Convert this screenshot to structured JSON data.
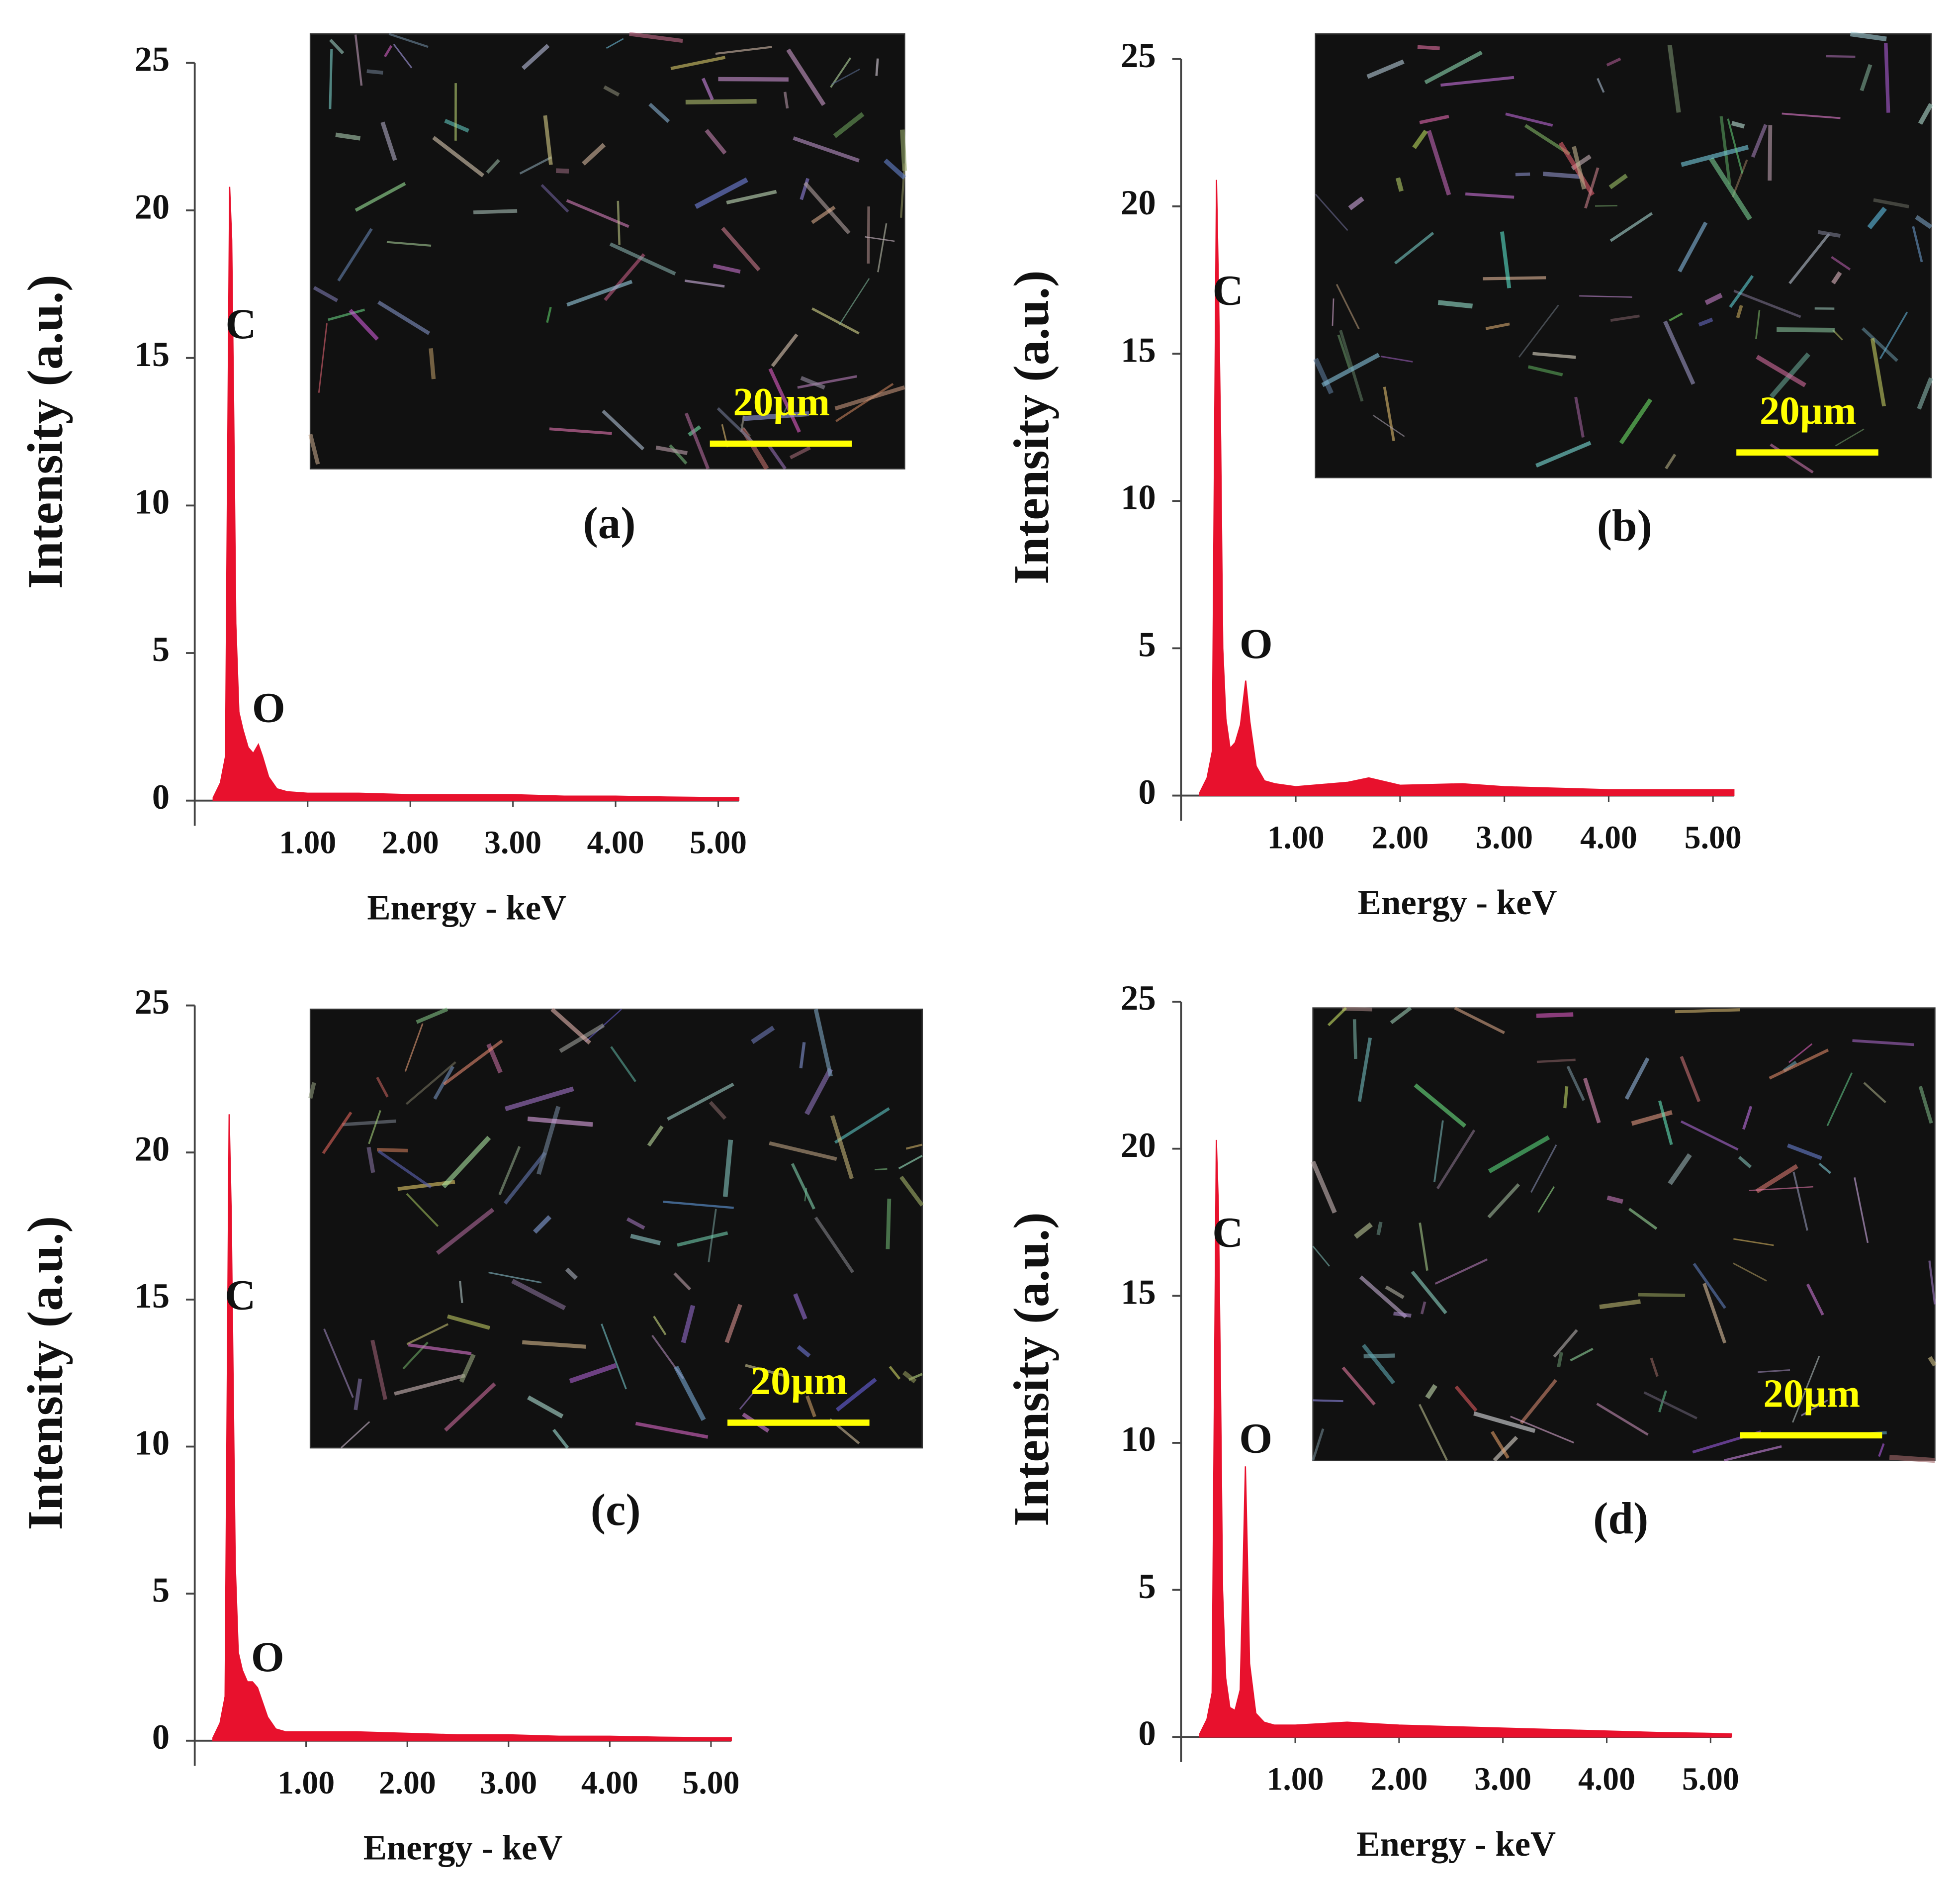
{
  "chart_data": [
    {
      "type": "area",
      "label": "(a)",
      "xlabel": "Energy - keV",
      "ylabel": "Intensity (a.u.)",
      "color": "#e8112d",
      "xlim": [
        -0.1,
        5.2
      ],
      "ylim": [
        0,
        25
      ],
      "xticks": [
        {
          "value": 1,
          "label": "1.00"
        },
        {
          "value": 2,
          "label": "2.00"
        },
        {
          "value": 3,
          "label": "3.00"
        },
        {
          "value": 4,
          "label": "4.00"
        },
        {
          "value": 5,
          "label": "5.00"
        }
      ],
      "yticks": [
        0,
        5,
        10,
        15,
        20,
        25
      ],
      "x": [
        0.08,
        0.15,
        0.2,
        0.24,
        0.26,
        0.28,
        0.3,
        0.33,
        0.37,
        0.42,
        0.47,
        0.52,
        0.56,
        0.62,
        0.7,
        0.8,
        1.0,
        1.5,
        2.0,
        2.5,
        3.0,
        3.5,
        4.0,
        4.5,
        5.0,
        5.2
      ],
      "values": [
        0.1,
        0.6,
        1.5,
        20.8,
        19,
        13,
        6,
        3,
        2.4,
        1.8,
        1.6,
        1.9,
        1.5,
        0.8,
        0.4,
        0.3,
        0.25,
        0.25,
        0.2,
        0.2,
        0.2,
        0.15,
        0.15,
        0.12,
        0.1,
        0.1
      ],
      "annotations": [
        {
          "text": "C",
          "x": 0.35,
          "y": 16
        },
        {
          "text": "O",
          "x": 0.62,
          "y": 3
        }
      ],
      "inset_scale": "20µm"
    },
    {
      "type": "area",
      "label": "(b)",
      "xlabel": "Energy - keV",
      "ylabel": "Intensity (a.u.)",
      "color": "#e8112d",
      "xlim": [
        -0.1,
        5.2
      ],
      "ylim": [
        0,
        25
      ],
      "xticks": [
        {
          "value": 1,
          "label": "1.00"
        },
        {
          "value": 2,
          "label": "2.00"
        },
        {
          "value": 3,
          "label": "3.00"
        },
        {
          "value": 4,
          "label": "4.00"
        },
        {
          "value": 5,
          "label": "5.00"
        }
      ],
      "yticks": [
        0,
        5,
        10,
        15,
        20,
        25
      ],
      "x": [
        0.08,
        0.15,
        0.2,
        0.24,
        0.26,
        0.28,
        0.3,
        0.33,
        0.37,
        0.42,
        0.47,
        0.52,
        0.56,
        0.62,
        0.7,
        0.8,
        1.0,
        1.5,
        1.7,
        2.0,
        2.6,
        3.0,
        3.5,
        4.0,
        4.5,
        5.0,
        5.2
      ],
      "values": [
        0.1,
        0.6,
        1.5,
        20.9,
        17,
        12,
        5,
        2.6,
        1.6,
        1.8,
        2.4,
        3.9,
        2.5,
        1.0,
        0.5,
        0.4,
        0.3,
        0.45,
        0.6,
        0.35,
        0.4,
        0.3,
        0.25,
        0.2,
        0.2,
        0.2,
        0.2
      ],
      "annotations": [
        {
          "text": "C",
          "x": 0.35,
          "y": 17
        },
        {
          "text": "O",
          "x": 0.62,
          "y": 5
        }
      ],
      "inset_scale": "20µm"
    },
    {
      "type": "area",
      "label": "(c)",
      "xlabel": "Energy - keV",
      "ylabel": "Intensity (a.u.)",
      "color": "#e8112d",
      "xlim": [
        -0.1,
        5.2
      ],
      "ylim": [
        0,
        25
      ],
      "xticks": [
        {
          "value": 1,
          "label": "1.00"
        },
        {
          "value": 2,
          "label": "2.00"
        },
        {
          "value": 3,
          "label": "3.00"
        },
        {
          "value": 4,
          "label": "4.00"
        },
        {
          "value": 5,
          "label": "5.00"
        }
      ],
      "yticks": [
        0,
        5,
        10,
        15,
        20,
        25
      ],
      "x": [
        0.08,
        0.15,
        0.2,
        0.24,
        0.26,
        0.28,
        0.3,
        0.33,
        0.37,
        0.42,
        0.47,
        0.52,
        0.56,
        0.62,
        0.7,
        0.8,
        1.0,
        1.5,
        2.0,
        2.5,
        3.0,
        3.5,
        4.0,
        4.5,
        5.0,
        5.2
      ],
      "values": [
        0.1,
        0.6,
        1.5,
        21.3,
        18,
        12,
        6,
        3,
        2.4,
        2.0,
        2.0,
        1.8,
        1.4,
        0.8,
        0.4,
        0.3,
        0.3,
        0.3,
        0.25,
        0.2,
        0.2,
        0.15,
        0.15,
        0.12,
        0.1,
        0.1
      ],
      "annotations": [
        {
          "text": "C",
          "x": 0.35,
          "y": 15
        },
        {
          "text": "O",
          "x": 0.62,
          "y": 2.7
        }
      ],
      "inset_scale": "20µm"
    },
    {
      "type": "area",
      "label": "(d)",
      "xlabel": "Energy - keV",
      "ylabel": "Intensity (a.u.)",
      "color": "#e8112d",
      "xlim": [
        -0.1,
        5.2
      ],
      "ylim": [
        0,
        25
      ],
      "xticks": [
        {
          "value": 1,
          "label": "1.00"
        },
        {
          "value": 2,
          "label": "2.00"
        },
        {
          "value": 3,
          "label": "3.00"
        },
        {
          "value": 4,
          "label": "4.00"
        },
        {
          "value": 5,
          "label": "5.00"
        }
      ],
      "yticks": [
        0,
        5,
        10,
        15,
        20,
        25
      ],
      "x": [
        0.08,
        0.15,
        0.2,
        0.24,
        0.26,
        0.28,
        0.3,
        0.33,
        0.37,
        0.42,
        0.47,
        0.5,
        0.52,
        0.54,
        0.56,
        0.62,
        0.7,
        0.8,
        1.0,
        1.5,
        2.0,
        2.5,
        3.0,
        3.5,
        4.0,
        4.5,
        5.0,
        5.2
      ],
      "values": [
        0.1,
        0.6,
        1.5,
        20.3,
        18,
        12,
        5,
        2,
        1.0,
        0.9,
        1.6,
        6,
        9.2,
        6,
        2.5,
        0.8,
        0.5,
        0.4,
        0.4,
        0.5,
        0.4,
        0.35,
        0.3,
        0.25,
        0.2,
        0.15,
        0.12,
        0.1
      ],
      "annotations": [
        {
          "text": "C",
          "x": 0.35,
          "y": 17
        },
        {
          "text": "O",
          "x": 0.62,
          "y": 10
        }
      ],
      "inset_scale": "20µm"
    }
  ]
}
